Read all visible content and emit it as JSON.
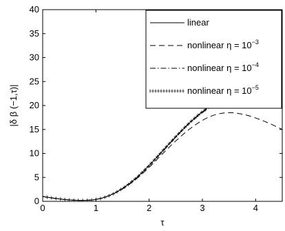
{
  "chart_data": {
    "type": "line",
    "title": "",
    "xlabel": "τ",
    "ylabel": "|δ β (−1,τ)|",
    "xlim": [
      0,
      4.5
    ],
    "ylim": [
      0,
      40
    ],
    "xticks": [
      0,
      1,
      2,
      3,
      4
    ],
    "yticks": [
      0,
      5,
      10,
      15,
      20,
      25,
      30,
      35,
      40
    ],
    "grid": false,
    "legend_position": "top-right",
    "x": [
      0,
      0.25,
      0.5,
      0.75,
      1.0,
      1.25,
      1.5,
      1.75,
      2.0,
      2.25,
      2.5,
      2.75,
      3.0,
      3.25,
      3.5,
      3.75,
      4.0,
      4.25,
      4.5
    ],
    "series": [
      {
        "name": "linear",
        "legend_base": "linear",
        "legend_exp": "",
        "style": "solid",
        "values": [
          1.0,
          0.6,
          0.3,
          0.2,
          0.4,
          1.2,
          2.7,
          4.8,
          7.5,
          10.5,
          13.5,
          16.3,
          18.7,
          20.6,
          21.8,
          22.3,
          22.2,
          21.6,
          20.7
        ]
      },
      {
        "name": "nonlinear η = 10^-3",
        "legend_base": "nonlinear η = 10",
        "legend_exp": "−3",
        "style": "dashed",
        "values": [
          1.0,
          0.6,
          0.3,
          0.2,
          0.4,
          1.2,
          2.6,
          4.6,
          7.1,
          9.9,
          12.6,
          15.0,
          16.9,
          18.1,
          18.5,
          18.2,
          17.4,
          16.3,
          15.0
        ]
      },
      {
        "name": "nonlinear η = 10^-4",
        "legend_base": "nonlinear η = 10",
        "legend_exp": "−4",
        "style": "dashdot",
        "values": [
          1.0,
          0.6,
          0.3,
          0.2,
          0.4,
          1.2,
          2.7,
          4.8,
          7.5,
          10.4,
          13.4,
          16.2,
          18.5,
          20.3,
          21.4,
          21.9,
          21.8,
          21.2,
          20.3
        ]
      },
      {
        "name": "nonlinear η = 10^-5",
        "legend_base": "nonlinear η = 10",
        "legend_exp": "−5",
        "style": "markers",
        "values": [
          1.0,
          0.6,
          0.3,
          0.2,
          0.4,
          1.2,
          2.7,
          4.8,
          7.5,
          10.5,
          13.5,
          16.3,
          18.7,
          20.6,
          21.8,
          22.3,
          22.2,
          21.6,
          20.7
        ]
      }
    ]
  }
}
